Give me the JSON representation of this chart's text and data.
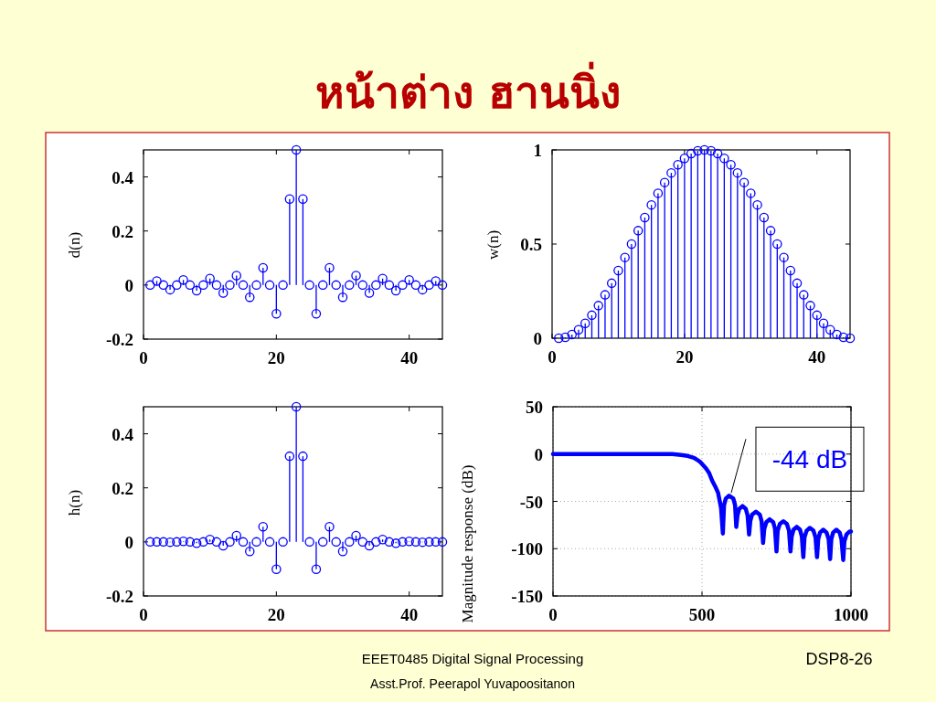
{
  "chart_data": [
    {
      "type": "lollipop",
      "title": "หน้าต่าง ฮานนิ่ง",
      "ylabel": "d(n)",
      "x": [
        1,
        2,
        3,
        4,
        5,
        6,
        7,
        8,
        9,
        10,
        11,
        12,
        13,
        14,
        15,
        16,
        17,
        18,
        19,
        20,
        21,
        22,
        23,
        24,
        25,
        26,
        27,
        28,
        29,
        30,
        31,
        32,
        33,
        34,
        35,
        36,
        37,
        38,
        39,
        40,
        41,
        42,
        43,
        44,
        45
      ],
      "values": [
        0,
        0.015,
        0,
        -0.017,
        0,
        0.019,
        0,
        -0.021,
        0,
        0.024,
        0,
        -0.029,
        0,
        0.035,
        0,
        -0.045,
        0,
        0.064,
        0,
        -0.106,
        0,
        0.318,
        0.5,
        0.318,
        0,
        -0.106,
        0,
        0.064,
        0,
        -0.045,
        0,
        0.035,
        0,
        -0.029,
        0,
        0.024,
        0,
        -0.021,
        0,
        0.019,
        0,
        -0.017,
        0,
        0.015,
        0
      ],
      "color": "#0000ff",
      "marker": "circle",
      "xlim": [
        0,
        45
      ],
      "xticks": [
        0,
        20,
        40
      ],
      "ylim": [
        -0.2,
        0.5
      ],
      "yticks": [
        -0.2,
        0,
        0.2,
        0.4
      ],
      "annotations": [
        "EEET0485 Digital Signal Processing",
        "DSP8-26",
        "Asst.Prof. Peerapol Yuvapoositanon"
      ]
    },
    {
      "type": "lollipop",
      "ylabel": "w(n)",
      "x": [
        1,
        2,
        3,
        4,
        5,
        6,
        7,
        8,
        9,
        10,
        11,
        12,
        13,
        14,
        15,
        16,
        17,
        18,
        19,
        20,
        21,
        22,
        23,
        24,
        25,
        26,
        27,
        28,
        29,
        30,
        31,
        32,
        33,
        34,
        35,
        36,
        37,
        38,
        39,
        40,
        41,
        42,
        43,
        44,
        45
      ],
      "values": [
        0,
        0.005,
        0.02,
        0.045,
        0.079,
        0.122,
        0.173,
        0.23,
        0.292,
        0.359,
        0.429,
        0.5,
        0.571,
        0.641,
        0.708,
        0.77,
        0.827,
        0.878,
        0.921,
        0.955,
        0.98,
        0.995,
        1,
        0.995,
        0.98,
        0.955,
        0.921,
        0.878,
        0.827,
        0.77,
        0.708,
        0.641,
        0.571,
        0.5,
        0.429,
        0.359,
        0.292,
        0.23,
        0.173,
        0.122,
        0.079,
        0.045,
        0.02,
        0.005,
        0
      ],
      "color": "#0000ff",
      "marker": "circle",
      "xlim": [
        0,
        45
      ],
      "xticks": [
        0,
        20,
        40
      ],
      "ylim": [
        0,
        1
      ],
      "yticks": [
        0,
        0.5,
        1
      ]
    },
    {
      "type": "lollipop",
      "ylabel": "h(n)",
      "x": [
        1,
        2,
        3,
        4,
        5,
        6,
        7,
        8,
        9,
        10,
        11,
        12,
        13,
        14,
        15,
        16,
        17,
        18,
        19,
        20,
        21,
        22,
        23,
        24,
        25,
        26,
        27,
        28,
        29,
        30,
        31,
        32,
        33,
        34,
        35,
        36,
        37,
        38,
        39,
        40,
        41,
        42,
        43,
        44,
        45
      ],
      "values": [
        0,
        0,
        0,
        -0.001,
        0,
        0.002,
        0,
        -0.005,
        0,
        0.009,
        0,
        -0.014,
        0,
        0.023,
        0,
        -0.035,
        0,
        0.056,
        0,
        -0.101,
        0,
        0.317,
        0.5,
        0.317,
        0,
        -0.101,
        0,
        0.056,
        0,
        -0.035,
        0,
        0.023,
        0,
        -0.014,
        0,
        0.009,
        0,
        -0.005,
        0,
        0.002,
        0,
        -0.001,
        0,
        0,
        0
      ],
      "color": "#0000ff",
      "marker": "circle",
      "xlim": [
        0,
        45
      ],
      "xticks": [
        0,
        20,
        40
      ],
      "ylim": [
        -0.2,
        0.5
      ],
      "yticks": [
        -0.2,
        0,
        0.2,
        0.4
      ]
    },
    {
      "type": "line",
      "ylabel": "Magnitude response (dB)",
      "x": [
        0,
        100,
        200,
        300,
        400,
        430,
        452,
        473,
        493,
        513,
        524,
        534,
        544,
        554,
        564,
        570,
        574,
        580,
        591,
        605,
        611,
        615,
        619,
        625,
        636,
        647,
        653,
        658,
        662,
        668,
        681,
        694,
        700,
        705,
        709,
        716,
        727,
        739,
        745,
        750,
        754,
        761,
        773,
        785,
        792,
        797,
        801,
        807,
        818,
        829,
        835,
        840,
        844,
        851,
        862,
        874,
        881,
        886,
        890,
        896,
        907,
        918,
        925,
        930,
        934,
        940,
        951,
        962,
        968,
        974,
        978,
        985,
        995,
        1000
      ],
      "values": [
        0,
        0,
        0,
        0,
        0,
        -1,
        -2,
        -4,
        -8,
        -15,
        -20,
        -28,
        -34,
        -41,
        -57,
        -84,
        -54,
        -47,
        -44,
        -47,
        -54,
        -77,
        -65,
        -58,
        -55,
        -58,
        -65,
        -85,
        -71,
        -64,
        -61,
        -64,
        -71,
        -94,
        -79,
        -72,
        -69,
        -72,
        -79,
        -103,
        -81,
        -74,
        -71,
        -74,
        -81,
        -103,
        -87,
        -80,
        -77,
        -80,
        -87,
        -109,
        -88,
        -81,
        -78,
        -81,
        -88,
        -109,
        -90,
        -83,
        -80,
        -83,
        -90,
        -111,
        -90,
        -83,
        -80,
        -83,
        -90,
        -112,
        -92,
        -85,
        -82,
        -82
      ],
      "color": "#0000ff",
      "line_style": "solid",
      "grid": true,
      "xlim": [
        0,
        1000
      ],
      "xticks": [
        0,
        500,
        1000
      ],
      "ylim": [
        -150,
        50
      ],
      "yticks": [
        -150,
        -100,
        -50,
        0,
        50
      ],
      "annotations": [
        {
          "text": "-44 dB",
          "x": 595,
          "y": -44
        }
      ]
    }
  ]
}
